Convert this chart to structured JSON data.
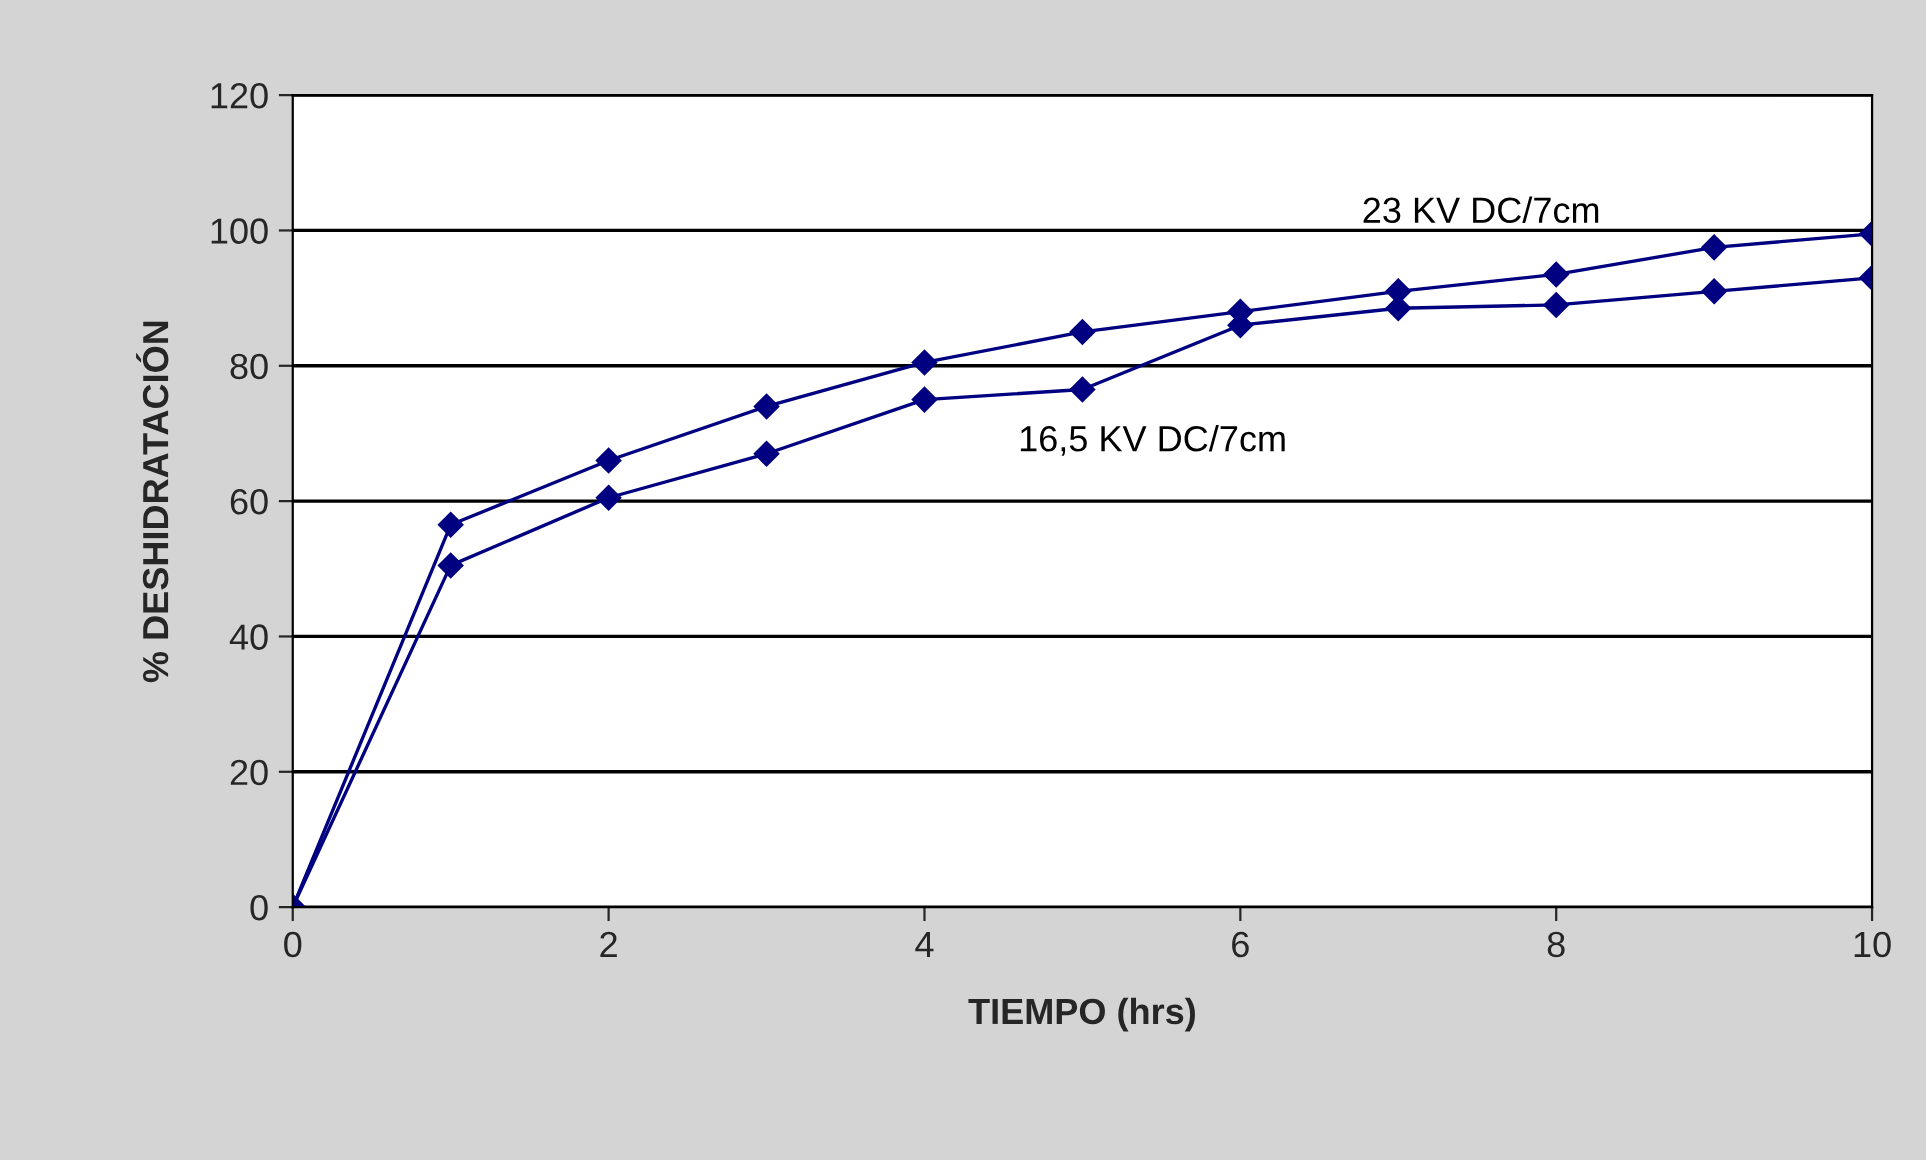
{
  "chart_data": {
    "type": "line",
    "xlabel": "TIEMPO (hrs)",
    "ylabel": "% DESHIDRATACIÓN",
    "x": [
      0,
      1,
      2,
      3,
      4,
      5,
      6,
      7,
      8,
      9,
      10
    ],
    "series": [
      {
        "name": "23 KV DC/7cm",
        "color": "#000080",
        "values": [
          0,
          56.5,
          66,
          74,
          80.5,
          85,
          88,
          91,
          93.5,
          97.5,
          99.5
        ]
      },
      {
        "name": "16,5 KV DC/7cm",
        "color": "#000080",
        "values": [
          0,
          50.5,
          60.5,
          67,
          75,
          76.5,
          86,
          88.5,
          89,
          91,
          93
        ]
      }
    ],
    "xlim": [
      0,
      10
    ],
    "xticks": [
      0,
      2,
      4,
      6,
      8,
      10
    ],
    "ylim": [
      0,
      120
    ],
    "yticks": [
      0,
      20,
      40,
      60,
      80,
      100,
      120
    ],
    "grid": "y",
    "marker": "diamond",
    "line_style": "solid",
    "legend": false
  }
}
